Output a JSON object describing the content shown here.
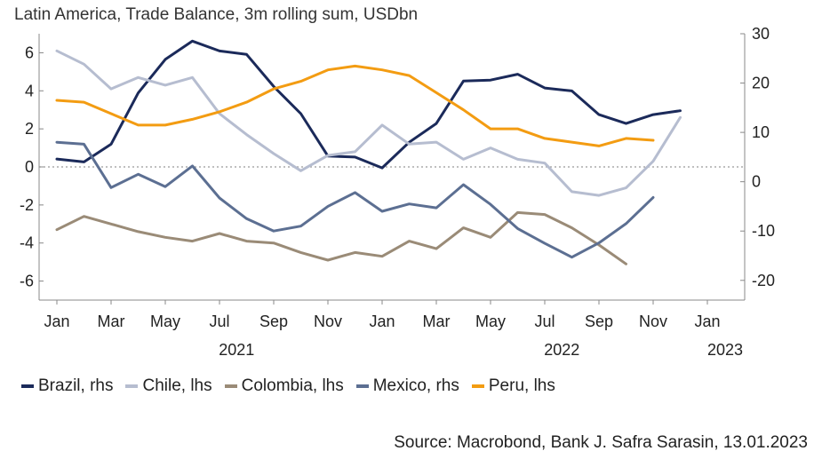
{
  "chart_data": {
    "type": "line",
    "title": "Latin America, Trade Balance, 3m rolling sum, USDbn",
    "source": "Source: Macrobond, Bank J. Safra Sarasin, 13.01.2023",
    "x_month_labels": [
      "Jan",
      "Mar",
      "May",
      "Jul",
      "Sep",
      "Nov",
      "Jan",
      "Mar",
      "May",
      "Jul",
      "Sep",
      "Nov",
      "Jan"
    ],
    "x_year_labels": [
      "2021",
      "2022",
      "2023"
    ],
    "x_range": [
      "2021-01",
      "2023-01"
    ],
    "left_axis": {
      "ticks": [
        "6",
        "4",
        "2",
        "0",
        "-2",
        "-4",
        "-6"
      ],
      "min": -7,
      "max": 7
    },
    "right_axis": {
      "ticks": [
        "30",
        "20",
        "10",
        "0",
        "-10",
        "-20"
      ],
      "min": -24,
      "max": 30
    },
    "zero_line": "dotted",
    "series": [
      {
        "name": "Brazil, rhs",
        "axis": "right",
        "color": "#1b2a5a",
        "values": [
          4.6,
          4.0,
          7.6,
          18.0,
          24.8,
          28.5,
          26.5,
          25.8,
          19.3,
          13.8,
          5.2,
          5.0,
          2.8,
          8.0,
          11.8,
          20.4,
          20.6,
          21.8,
          19.0,
          18.4,
          13.6,
          11.8,
          13.6,
          14.4
        ]
      },
      {
        "name": "Chile, lhs",
        "axis": "left",
        "color": "#b6bdd0",
        "values": [
          6.1,
          5.4,
          4.1,
          4.7,
          4.3,
          4.7,
          2.8,
          1.7,
          0.7,
          -0.2,
          0.6,
          0.8,
          2.2,
          1.2,
          1.3,
          0.4,
          1.0,
          0.4,
          0.2,
          -1.3,
          -1.5,
          -1.1,
          0.3,
          2.6
        ]
      },
      {
        "name": "Colombia, lhs",
        "axis": "left",
        "color": "#9a8b77",
        "values": [
          -3.3,
          -2.6,
          -3.0,
          -3.4,
          -3.7,
          -3.9,
          -3.5,
          -3.9,
          -4.0,
          -4.5,
          -4.9,
          -4.5,
          -4.7,
          -3.9,
          -4.3,
          -3.2,
          -3.7,
          -2.4,
          -2.5,
          -3.2,
          -4.1,
          -5.1
        ]
      },
      {
        "name": "Mexico, rhs",
        "axis": "right",
        "color": "#5c6f92",
        "values": [
          8.0,
          7.6,
          -1.2,
          1.5,
          -1.0,
          3.2,
          -3.3,
          -7.5,
          -10.0,
          -9.0,
          -5.0,
          -2.2,
          -6.0,
          -4.5,
          -5.3,
          -0.6,
          -4.6,
          -9.5,
          -12.5,
          -15.3,
          -12.4,
          -8.5,
          -3.2
        ]
      },
      {
        "name": "Peru, lhs",
        "axis": "left",
        "color": "#f39c12",
        "values": [
          3.5,
          3.4,
          2.8,
          2.2,
          2.2,
          2.5,
          2.9,
          3.4,
          4.1,
          4.5,
          5.1,
          5.3,
          5.1,
          4.8,
          3.9,
          3.0,
          2.0,
          2.0,
          1.5,
          1.3,
          1.1,
          1.5,
          1.4
        ]
      }
    ]
  }
}
